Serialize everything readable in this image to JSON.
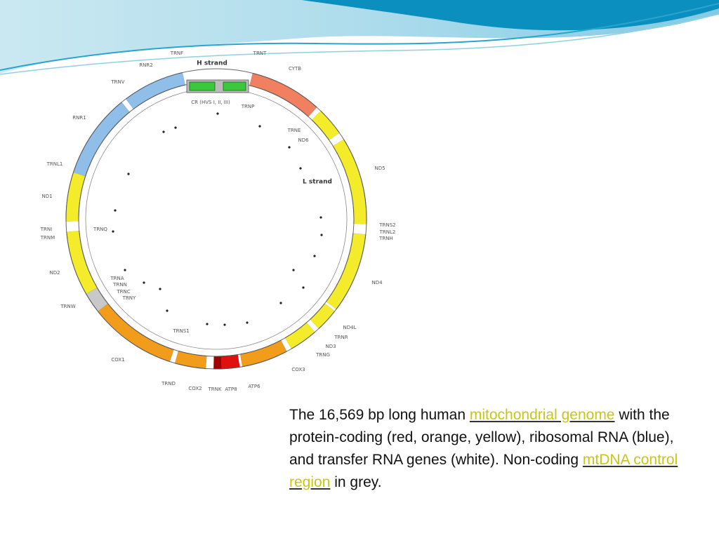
{
  "diagram": {
    "strand_h": "H strand",
    "strand_l": "L strand",
    "labels": [
      "TRNF",
      "TRNT",
      "CYTB",
      "RNR2",
      "TRNV",
      "RNR1",
      "TRNL1",
      "ND1",
      "TRNI",
      "TRNM",
      "TRNQ",
      "ND2",
      "TRNW",
      "TRNA",
      "TRNN",
      "TRNC",
      "TRNY",
      "COX1",
      "TRNS1",
      "TRND",
      "COX2",
      "TRNK",
      "ATP8",
      "ATP6",
      "COX3",
      "TRNG",
      "ND3",
      "TRNR",
      "ND4L",
      "ND4",
      "TRNS2",
      "TRNL2",
      "TRNH",
      "ND5",
      "ND6",
      "TRNE",
      "TRNP",
      "CR (HVS I, II, III)"
    ]
  },
  "caption": {
    "text_1": "The 16,569 bp long human ",
    "link_1": "mitochondrial genome",
    "text_2": " with the protein-coding (red, orange, yellow), ribosomal RNA (blue), and transfer RNA genes (white). Non-coding ",
    "link_2": "mtDNA control region",
    "text_3": " in grey."
  }
}
